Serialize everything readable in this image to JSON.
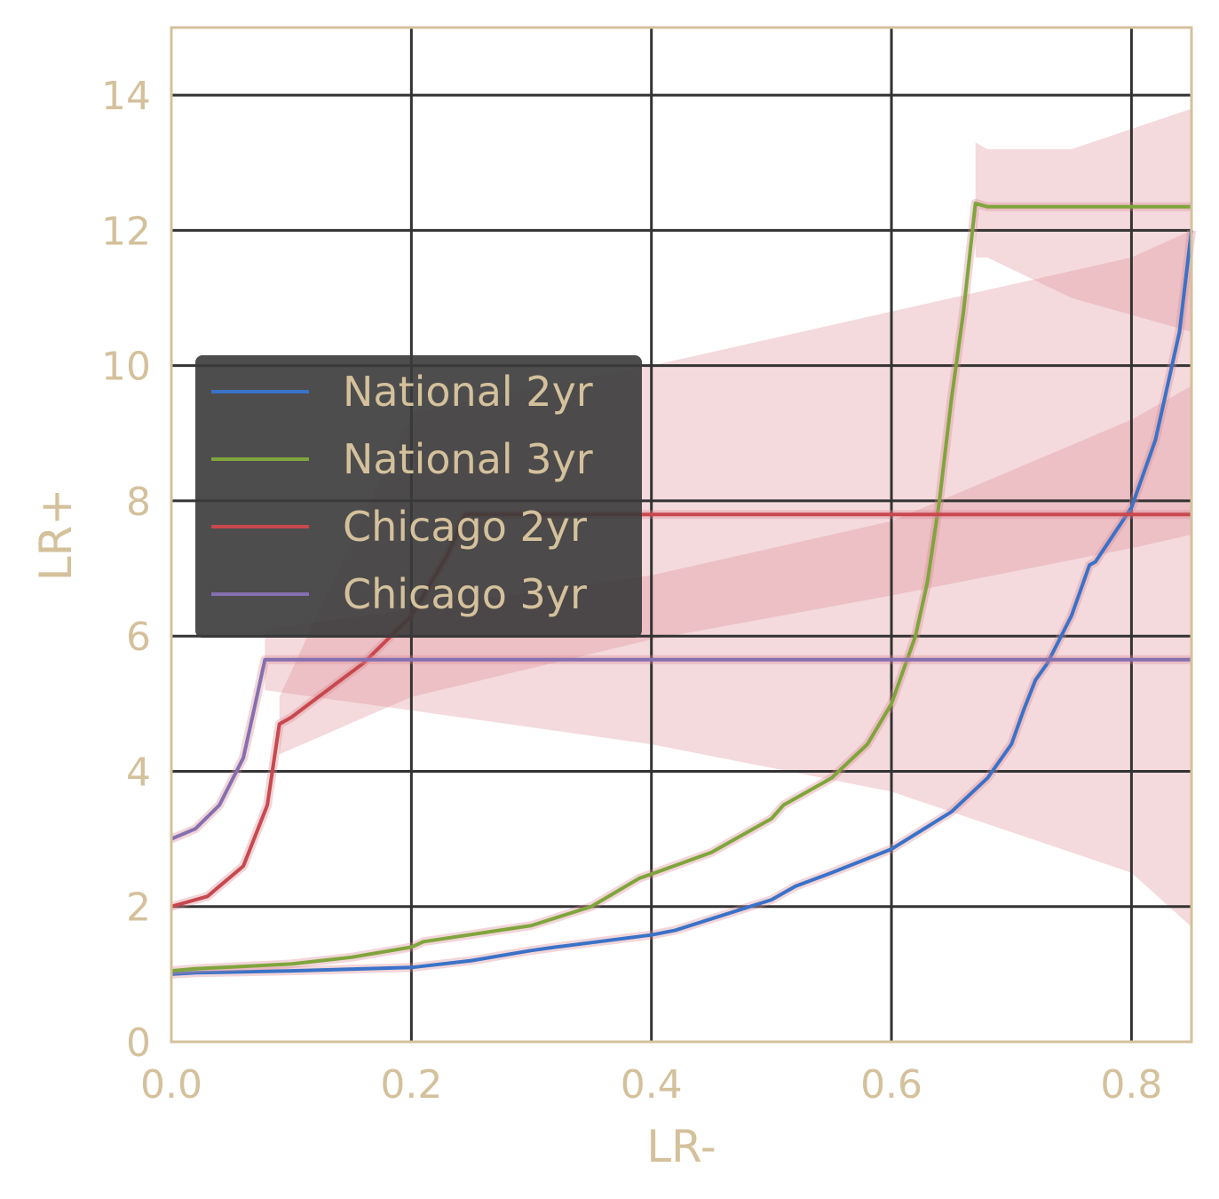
{
  "chart_data": {
    "type": "line",
    "title": "",
    "xlabel": "LR-",
    "ylabel": "LR+",
    "xlim": [
      0,
      0.85
    ],
    "ylim": [
      0,
      15
    ],
    "xticks": [
      "0.0",
      "0.2",
      "0.4",
      "0.6",
      "0.8"
    ],
    "yticks": [
      "0",
      "2",
      "4",
      "6",
      "8",
      "10",
      "12",
      "14"
    ],
    "grid": true,
    "legend_position": "center-left",
    "colors": {
      "text": "#d4c19c",
      "frame": "#d4c19c",
      "grid": "#333333",
      "legend_bg": "#3a3a3a",
      "band": "#d9868e"
    },
    "series": [
      {
        "name": "National 2yr",
        "color": "#3a72c8",
        "x": [
          0,
          0.02,
          0.1,
          0.2,
          0.25,
          0.3,
          0.32,
          0.4,
          0.42,
          0.5,
          0.52,
          0.55,
          0.6,
          0.65,
          0.68,
          0.7,
          0.71,
          0.72,
          0.73,
          0.75,
          0.765,
          0.77,
          0.8,
          0.82,
          0.84,
          0.85
        ],
        "y": [
          1.0,
          1.02,
          1.05,
          1.1,
          1.2,
          1.35,
          1.4,
          1.58,
          1.65,
          2.1,
          2.3,
          2.5,
          2.85,
          3.4,
          3.9,
          4.4,
          4.9,
          5.35,
          5.6,
          6.3,
          7.05,
          7.1,
          7.9,
          8.9,
          10.5,
          12.0
        ]
      },
      {
        "name": "National 3yr",
        "color": "#7fa53c",
        "x": [
          0,
          0.02,
          0.1,
          0.15,
          0.2,
          0.21,
          0.3,
          0.35,
          0.39,
          0.4,
          0.45,
          0.5,
          0.51,
          0.55,
          0.58,
          0.6,
          0.62,
          0.63,
          0.64,
          0.65,
          0.66,
          0.67,
          0.68,
          0.85
        ],
        "y": [
          1.05,
          1.08,
          1.15,
          1.25,
          1.4,
          1.48,
          1.72,
          2.0,
          2.42,
          2.48,
          2.8,
          3.3,
          3.5,
          3.9,
          4.4,
          5.0,
          6.0,
          6.8,
          8.0,
          9.5,
          10.8,
          12.4,
          12.35,
          12.35
        ]
      },
      {
        "name": "Chicago 2yr",
        "color": "#c8484e",
        "x": [
          0,
          0.03,
          0.06,
          0.08,
          0.09,
          0.1,
          0.13,
          0.16,
          0.2,
          0.23,
          0.245,
          0.85
        ],
        "y": [
          2.0,
          2.15,
          2.6,
          3.5,
          4.7,
          4.8,
          5.2,
          5.6,
          6.3,
          7.2,
          7.8,
          7.8
        ]
      },
      {
        "name": "Chicago 3yr",
        "color": "#8470b0",
        "x": [
          0,
          0.02,
          0.04,
          0.06,
          0.07,
          0.078,
          0.85
        ],
        "y": [
          3.0,
          3.15,
          3.5,
          4.2,
          5.0,
          5.65,
          5.65
        ]
      }
    ],
    "bands": [
      {
        "series": "Chicago 2yr",
        "x": [
          0.09,
          0.2,
          0.4,
          0.6,
          0.8,
          0.85
        ],
        "lower": [
          4.25,
          5.1,
          5.95,
          6.6,
          7.3,
          7.5
        ],
        "upper": [
          5.1,
          9.3,
          10.0,
          10.8,
          11.6,
          12.0
        ]
      },
      {
        "series": "Chicago 3yr",
        "x": [
          0.078,
          0.2,
          0.4,
          0.6,
          0.8,
          0.85
        ],
        "lower": [
          5.2,
          4.9,
          4.4,
          3.7,
          2.5,
          1.7
        ],
        "upper": [
          6.1,
          6.4,
          6.9,
          7.7,
          9.2,
          9.7
        ]
      },
      {
        "series": "National 3yr",
        "x": [
          0.67,
          0.68,
          0.75,
          0.85
        ],
        "lower": [
          11.6,
          11.6,
          11.0,
          10.5
        ],
        "upper": [
          13.3,
          13.2,
          13.2,
          13.8
        ]
      }
    ]
  }
}
